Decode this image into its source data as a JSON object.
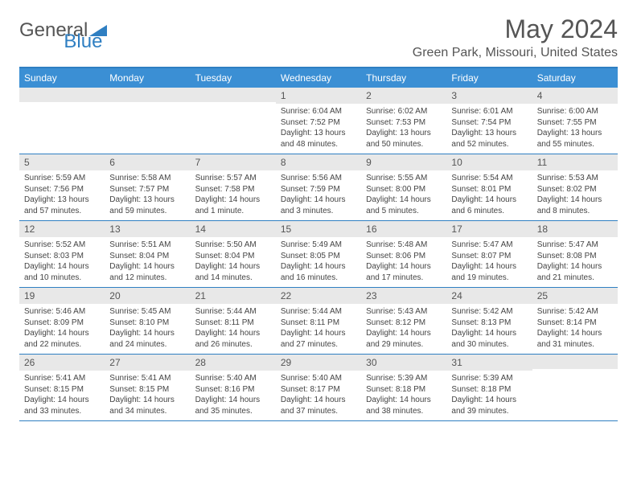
{
  "logo": {
    "text1": "General",
    "text2": "Blue"
  },
  "title": "May 2024",
  "location": "Green Park, Missouri, United States",
  "weekdays": [
    "Sunday",
    "Monday",
    "Tuesday",
    "Wednesday",
    "Thursday",
    "Friday",
    "Saturday"
  ],
  "colors": {
    "header_bar": "#3b8fd4",
    "border": "#2f7fc2",
    "day_num_bg": "#e8e8e8",
    "text": "#555555"
  },
  "weeks": [
    [
      {
        "n": "",
        "sunrise": "",
        "sunset": "",
        "daylight": ""
      },
      {
        "n": "",
        "sunrise": "",
        "sunset": "",
        "daylight": ""
      },
      {
        "n": "",
        "sunrise": "",
        "sunset": "",
        "daylight": ""
      },
      {
        "n": "1",
        "sunrise": "Sunrise: 6:04 AM",
        "sunset": "Sunset: 7:52 PM",
        "daylight": "Daylight: 13 hours and 48 minutes."
      },
      {
        "n": "2",
        "sunrise": "Sunrise: 6:02 AM",
        "sunset": "Sunset: 7:53 PM",
        "daylight": "Daylight: 13 hours and 50 minutes."
      },
      {
        "n": "3",
        "sunrise": "Sunrise: 6:01 AM",
        "sunset": "Sunset: 7:54 PM",
        "daylight": "Daylight: 13 hours and 52 minutes."
      },
      {
        "n": "4",
        "sunrise": "Sunrise: 6:00 AM",
        "sunset": "Sunset: 7:55 PM",
        "daylight": "Daylight: 13 hours and 55 minutes."
      }
    ],
    [
      {
        "n": "5",
        "sunrise": "Sunrise: 5:59 AM",
        "sunset": "Sunset: 7:56 PM",
        "daylight": "Daylight: 13 hours and 57 minutes."
      },
      {
        "n": "6",
        "sunrise": "Sunrise: 5:58 AM",
        "sunset": "Sunset: 7:57 PM",
        "daylight": "Daylight: 13 hours and 59 minutes."
      },
      {
        "n": "7",
        "sunrise": "Sunrise: 5:57 AM",
        "sunset": "Sunset: 7:58 PM",
        "daylight": "Daylight: 14 hours and 1 minute."
      },
      {
        "n": "8",
        "sunrise": "Sunrise: 5:56 AM",
        "sunset": "Sunset: 7:59 PM",
        "daylight": "Daylight: 14 hours and 3 minutes."
      },
      {
        "n": "9",
        "sunrise": "Sunrise: 5:55 AM",
        "sunset": "Sunset: 8:00 PM",
        "daylight": "Daylight: 14 hours and 5 minutes."
      },
      {
        "n": "10",
        "sunrise": "Sunrise: 5:54 AM",
        "sunset": "Sunset: 8:01 PM",
        "daylight": "Daylight: 14 hours and 6 minutes."
      },
      {
        "n": "11",
        "sunrise": "Sunrise: 5:53 AM",
        "sunset": "Sunset: 8:02 PM",
        "daylight": "Daylight: 14 hours and 8 minutes."
      }
    ],
    [
      {
        "n": "12",
        "sunrise": "Sunrise: 5:52 AM",
        "sunset": "Sunset: 8:03 PM",
        "daylight": "Daylight: 14 hours and 10 minutes."
      },
      {
        "n": "13",
        "sunrise": "Sunrise: 5:51 AM",
        "sunset": "Sunset: 8:04 PM",
        "daylight": "Daylight: 14 hours and 12 minutes."
      },
      {
        "n": "14",
        "sunrise": "Sunrise: 5:50 AM",
        "sunset": "Sunset: 8:04 PM",
        "daylight": "Daylight: 14 hours and 14 minutes."
      },
      {
        "n": "15",
        "sunrise": "Sunrise: 5:49 AM",
        "sunset": "Sunset: 8:05 PM",
        "daylight": "Daylight: 14 hours and 16 minutes."
      },
      {
        "n": "16",
        "sunrise": "Sunrise: 5:48 AM",
        "sunset": "Sunset: 8:06 PM",
        "daylight": "Daylight: 14 hours and 17 minutes."
      },
      {
        "n": "17",
        "sunrise": "Sunrise: 5:47 AM",
        "sunset": "Sunset: 8:07 PM",
        "daylight": "Daylight: 14 hours and 19 minutes."
      },
      {
        "n": "18",
        "sunrise": "Sunrise: 5:47 AM",
        "sunset": "Sunset: 8:08 PM",
        "daylight": "Daylight: 14 hours and 21 minutes."
      }
    ],
    [
      {
        "n": "19",
        "sunrise": "Sunrise: 5:46 AM",
        "sunset": "Sunset: 8:09 PM",
        "daylight": "Daylight: 14 hours and 22 minutes."
      },
      {
        "n": "20",
        "sunrise": "Sunrise: 5:45 AM",
        "sunset": "Sunset: 8:10 PM",
        "daylight": "Daylight: 14 hours and 24 minutes."
      },
      {
        "n": "21",
        "sunrise": "Sunrise: 5:44 AM",
        "sunset": "Sunset: 8:11 PM",
        "daylight": "Daylight: 14 hours and 26 minutes."
      },
      {
        "n": "22",
        "sunrise": "Sunrise: 5:44 AM",
        "sunset": "Sunset: 8:11 PM",
        "daylight": "Daylight: 14 hours and 27 minutes."
      },
      {
        "n": "23",
        "sunrise": "Sunrise: 5:43 AM",
        "sunset": "Sunset: 8:12 PM",
        "daylight": "Daylight: 14 hours and 29 minutes."
      },
      {
        "n": "24",
        "sunrise": "Sunrise: 5:42 AM",
        "sunset": "Sunset: 8:13 PM",
        "daylight": "Daylight: 14 hours and 30 minutes."
      },
      {
        "n": "25",
        "sunrise": "Sunrise: 5:42 AM",
        "sunset": "Sunset: 8:14 PM",
        "daylight": "Daylight: 14 hours and 31 minutes."
      }
    ],
    [
      {
        "n": "26",
        "sunrise": "Sunrise: 5:41 AM",
        "sunset": "Sunset: 8:15 PM",
        "daylight": "Daylight: 14 hours and 33 minutes."
      },
      {
        "n": "27",
        "sunrise": "Sunrise: 5:41 AM",
        "sunset": "Sunset: 8:15 PM",
        "daylight": "Daylight: 14 hours and 34 minutes."
      },
      {
        "n": "28",
        "sunrise": "Sunrise: 5:40 AM",
        "sunset": "Sunset: 8:16 PM",
        "daylight": "Daylight: 14 hours and 35 minutes."
      },
      {
        "n": "29",
        "sunrise": "Sunrise: 5:40 AM",
        "sunset": "Sunset: 8:17 PM",
        "daylight": "Daylight: 14 hours and 37 minutes."
      },
      {
        "n": "30",
        "sunrise": "Sunrise: 5:39 AM",
        "sunset": "Sunset: 8:18 PM",
        "daylight": "Daylight: 14 hours and 38 minutes."
      },
      {
        "n": "31",
        "sunrise": "Sunrise: 5:39 AM",
        "sunset": "Sunset: 8:18 PM",
        "daylight": "Daylight: 14 hours and 39 minutes."
      },
      {
        "n": "",
        "sunrise": "",
        "sunset": "",
        "daylight": ""
      }
    ]
  ]
}
